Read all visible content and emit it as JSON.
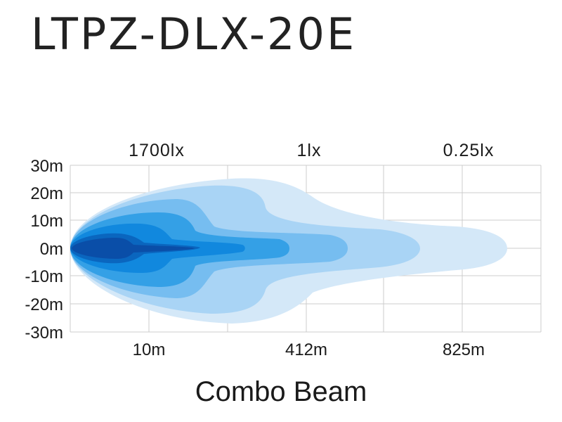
{
  "header": {
    "title": "LTPZ-DLX-20E"
  },
  "chart_data": {
    "type": "area",
    "title": "Combo Beam",
    "product": "LTPZ-DLX-20E",
    "y_ticks": [
      "30m",
      "20m",
      "10m",
      "0m",
      "-10m",
      "-20m",
      "-30m"
    ],
    "x_ticks": [
      "10m",
      "412m",
      "825m"
    ],
    "lux_labels": [
      "1700lx",
      "1lx",
      "0.25lx"
    ],
    "ylim": [
      -30,
      30
    ],
    "grid": true,
    "colors": {
      "zone1": "#d4e8f8",
      "zone2": "#a9d4f5",
      "zone3": "#76bdf0",
      "zone4": "#34a0e6",
      "zone5": "#1188de",
      "zone6": "#0a66bf",
      "core": "#0a4ea8",
      "grid": "#cccccc"
    }
  }
}
